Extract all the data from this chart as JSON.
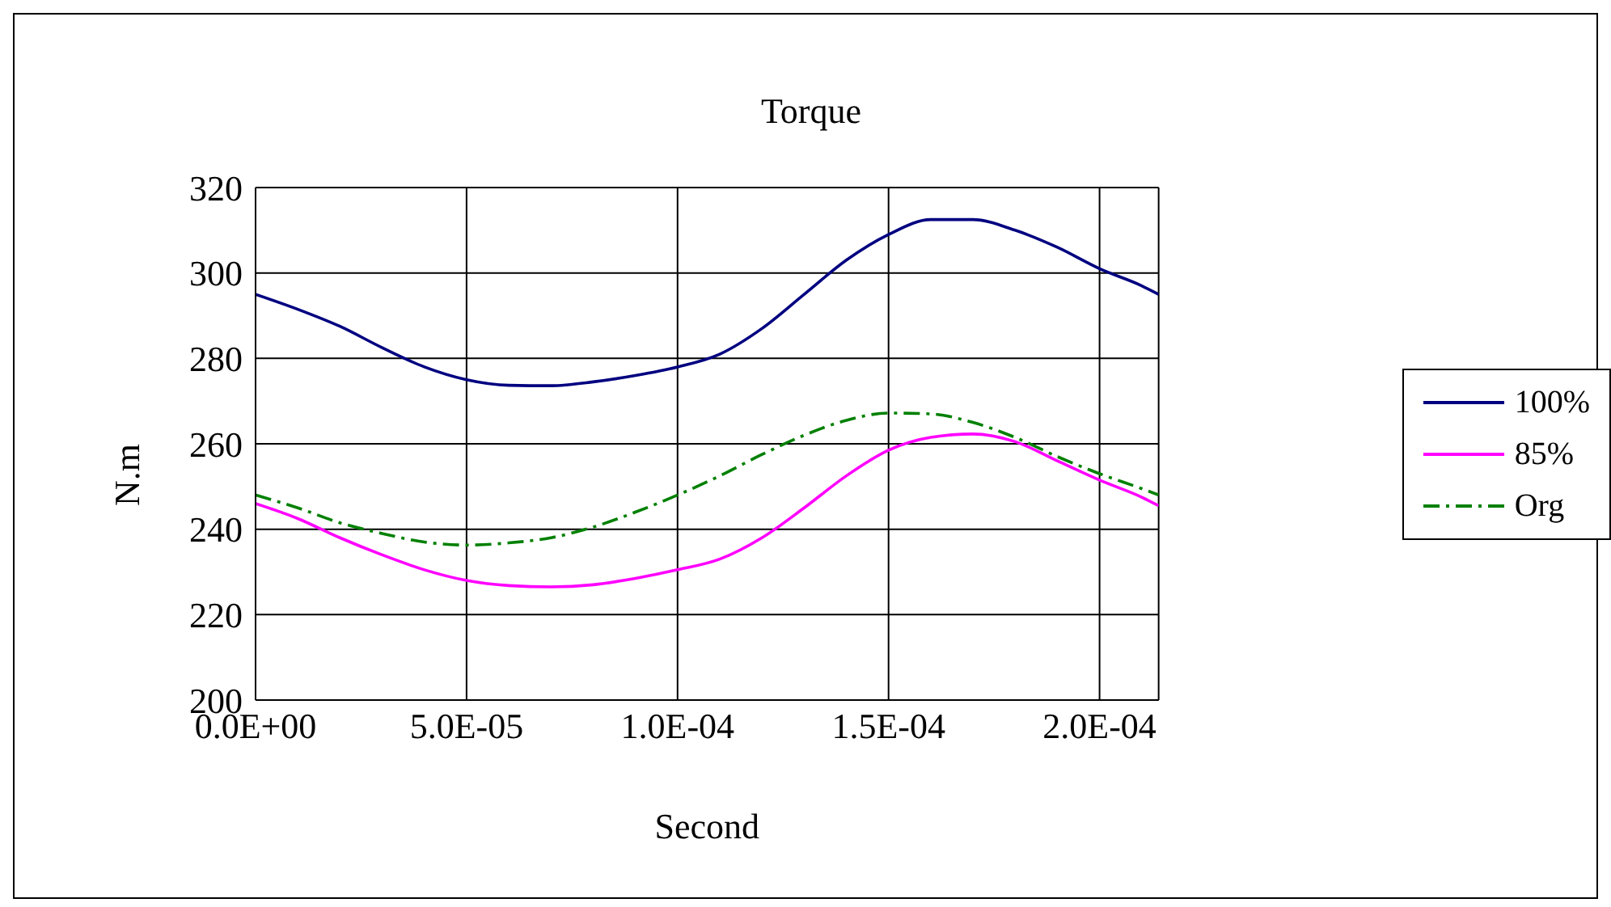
{
  "chart_data": {
    "type": "line",
    "title": "Torque",
    "xlabel": "Second",
    "ylabel": "N.m",
    "x": [
      0,
      1e-05,
      2e-05,
      3e-05,
      4e-05,
      5e-05,
      6e-05,
      7e-05,
      8e-05,
      9e-05,
      0.0001,
      0.00011,
      0.00012,
      0.00013,
      0.00014,
      0.00015,
      0.00016,
      0.00017,
      0.00018,
      0.00019,
      0.0002,
      0.00021,
      0.000214
    ],
    "series": [
      {
        "name": "100%",
        "color": "#000080",
        "line_style": "solid",
        "values": [
          295,
          291.5,
          287.5,
          282.5,
          278,
          275,
          273.7,
          273.6,
          274.5,
          276,
          278,
          281,
          287,
          295,
          303,
          309,
          312.5,
          312.5,
          310,
          306,
          301,
          297,
          295
        ]
      },
      {
        "name": "85%",
        "color": "#ff00ff",
        "line_style": "solid",
        "values": [
          246,
          242.5,
          238,
          234,
          230.5,
          228,
          226.8,
          226.5,
          227,
          228.5,
          230.5,
          233,
          238,
          245,
          252.5,
          258.5,
          261.5,
          262.3,
          260.5,
          256,
          251.5,
          247.5,
          245.5
        ]
      },
      {
        "name": "Org",
        "color": "#008000",
        "line_style": "dashed",
        "values": [
          248,
          245,
          241.5,
          239,
          237,
          236.3,
          236.8,
          238,
          240.5,
          244,
          248,
          252.5,
          257.5,
          262,
          265.5,
          267.2,
          267,
          265,
          261.5,
          257,
          253,
          249.5,
          248
        ]
      }
    ],
    "xlim": [
      0,
      0.000214
    ],
    "xticks": [
      {
        "value": 0,
        "label": "0.0E+00"
      },
      {
        "value": 5e-05,
        "label": "5.0E-05"
      },
      {
        "value": 0.0001,
        "label": "1.0E-04"
      },
      {
        "value": 0.00015,
        "label": "1.5E-04"
      },
      {
        "value": 0.0002,
        "label": "2.0E-04"
      }
    ],
    "ylim": [
      200,
      320
    ],
    "yticks": [
      200,
      220,
      240,
      260,
      280,
      300,
      320
    ],
    "grid": true,
    "legend": "right",
    "marker": "none"
  }
}
